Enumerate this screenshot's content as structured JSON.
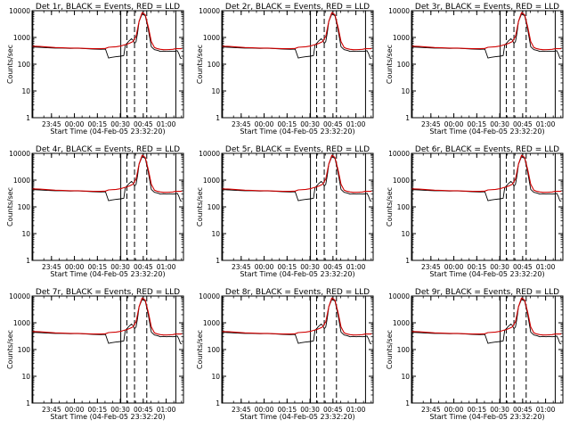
{
  "figure": {
    "background": "#ffffff",
    "axis_color": "#000000"
  },
  "chart_data": [
    {
      "type": "line",
      "title": "Det 1r, BLACK = Events, RED = LLD"
    },
    {
      "type": "line",
      "title": "Det 2r, BLACK = Events, RED = LLD"
    },
    {
      "type": "line",
      "title": "Det 3r, BLACK = Events, RED = LLD"
    },
    {
      "type": "line",
      "title": "Det 4r, BLACK = Events, RED = LLD"
    },
    {
      "type": "line",
      "title": "Det 5r, BLACK = Events, RED = LLD"
    },
    {
      "type": "line",
      "title": "Det 6r, BLACK = Events, RED = LLD"
    },
    {
      "type": "line",
      "title": "Det 7r, BLACK = Events, RED = LLD"
    },
    {
      "type": "line",
      "title": "Det 8r, BLACK = Events, RED = LLD"
    },
    {
      "type": "line",
      "title": "Det 9r, BLACK = Events, RED = LLD"
    }
  ],
  "shared": {
    "ylabel": "Counts/sec",
    "xlabel": "Start Time (04-Feb-05 23:32:20)",
    "yscale": "log",
    "ylim": [
      1,
      10000
    ],
    "y_tick_values": [
      1,
      10,
      100,
      1000,
      10000
    ],
    "y_tick_labels": [
      "1",
      "10",
      "100",
      "1000",
      "10000"
    ],
    "xlim_minutes": [
      0,
      99
    ],
    "x_tick_minutes": [
      12.7,
      27.7,
      42.7,
      57.7,
      72.7,
      87.7
    ],
    "x_tick_labels": [
      "23:45",
      "00:00",
      "00:15",
      "00:30",
      "00:45",
      "01:00"
    ],
    "series": [
      {
        "name": "Events",
        "color": "#000000",
        "x": [
          0,
          5,
          10,
          15,
          20,
          25,
          30,
          35,
          40,
          45,
          48,
          50,
          52,
          55,
          58,
          60,
          61,
          62,
          63,
          65,
          66,
          67,
          68,
          69,
          70,
          72,
          74,
          76,
          78,
          80,
          82,
          84,
          86,
          88,
          90,
          92,
          94,
          95,
          96,
          97,
          98
        ],
        "y": [
          440,
          430,
          410,
          400,
          400,
          390,
          395,
          380,
          370,
          360,
          370,
          170,
          180,
          190,
          200,
          210,
          520,
          600,
          700,
          900,
          800,
          600,
          700,
          1500,
          4000,
          7500,
          6500,
          2000,
          450,
          350,
          330,
          300,
          310,
          300,
          310,
          300,
          310,
          320,
          250,
          170,
          160
        ]
      },
      {
        "name": "LLD",
        "color": "#d00000",
        "x": [
          0,
          5,
          10,
          15,
          20,
          25,
          30,
          35,
          40,
          45,
          48,
          50,
          55,
          58,
          60,
          62,
          64,
          66,
          68,
          70,
          72,
          74,
          76,
          78,
          80,
          82,
          84,
          86,
          88,
          90,
          92,
          94,
          96,
          98
        ],
        "y": [
          470,
          460,
          440,
          420,
          410,
          400,
          400,
          390,
          380,
          380,
          390,
          430,
          450,
          480,
          520,
          560,
          620,
          700,
          1100,
          4000,
          8500,
          7000,
          2500,
          700,
          420,
          380,
          360,
          350,
          350,
          355,
          360,
          380,
          380,
          380
        ]
      }
    ],
    "vertical_lines_minutes": [
      {
        "x": 0.5,
        "style": "solid"
      },
      {
        "x": 58,
        "style": "solid"
      },
      {
        "x": 62,
        "style": "dashed"
      },
      {
        "x": 67,
        "style": "dashed"
      },
      {
        "x": 75,
        "style": "dashed"
      },
      {
        "x": 94,
        "style": "solid"
      }
    ]
  }
}
